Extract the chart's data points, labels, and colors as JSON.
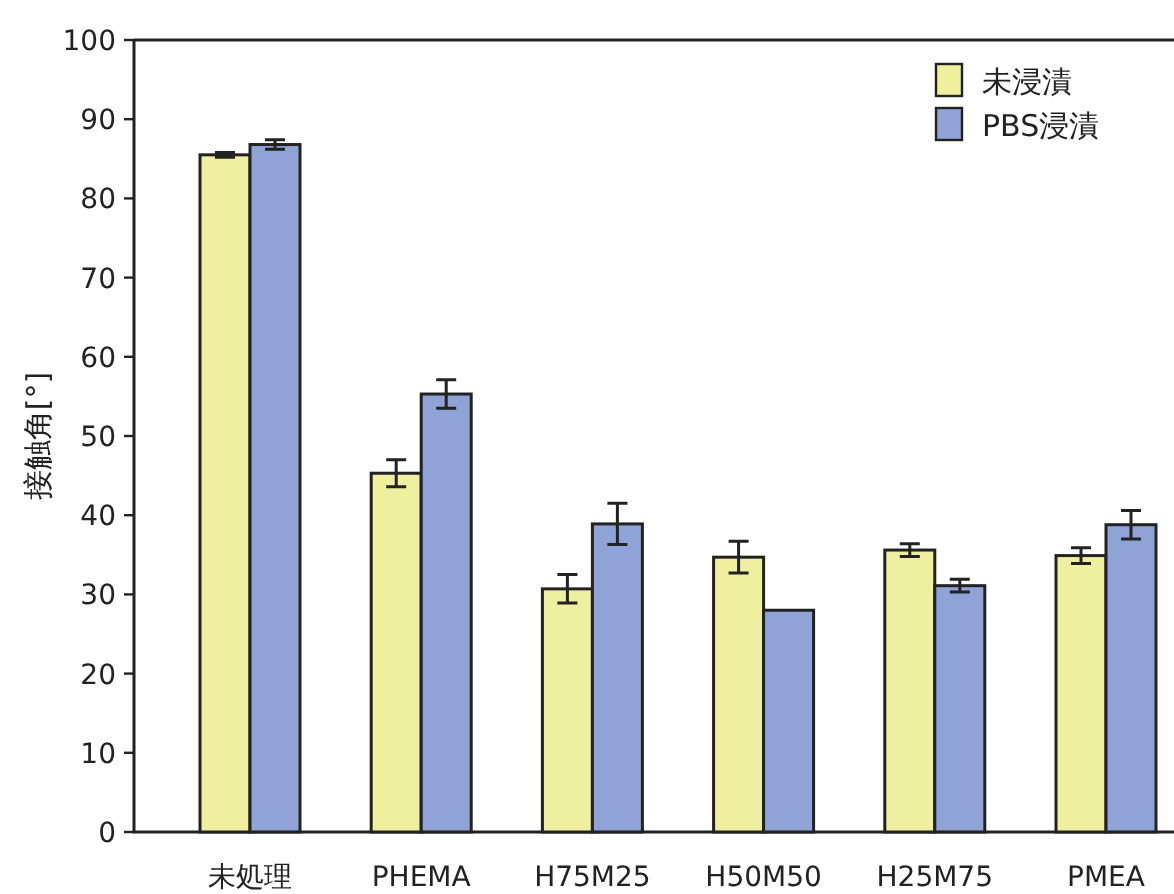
{
  "chart_data": {
    "type": "bar",
    "ylabel": "接触角[°]",
    "categories": [
      "未処理",
      "PHEMA",
      "H75M25",
      "H50M50",
      "H25M75",
      "PMEA"
    ],
    "series": [
      {
        "name": "未浸漬",
        "color": "#eef0a0",
        "values": [
          85.5,
          45.3,
          30.7,
          34.7,
          35.6,
          34.9
        ],
        "errors": [
          0.3,
          1.7,
          1.8,
          2,
          0.8,
          1
        ]
      },
      {
        "name": "PBS浸漬",
        "color": "#8fa3d6",
        "values": [
          86.8,
          55.3,
          38.9,
          28,
          31.1,
          38.8
        ],
        "errors": [
          0.6,
          1.8,
          2.6,
          null,
          0.8,
          1.8
        ]
      }
    ],
    "ylim": [
      0,
      100
    ],
    "yticks": [
      0,
      10,
      20,
      30,
      40,
      50,
      60,
      70,
      80,
      90,
      100
    ],
    "legend": "top right",
    "grid": false
  }
}
